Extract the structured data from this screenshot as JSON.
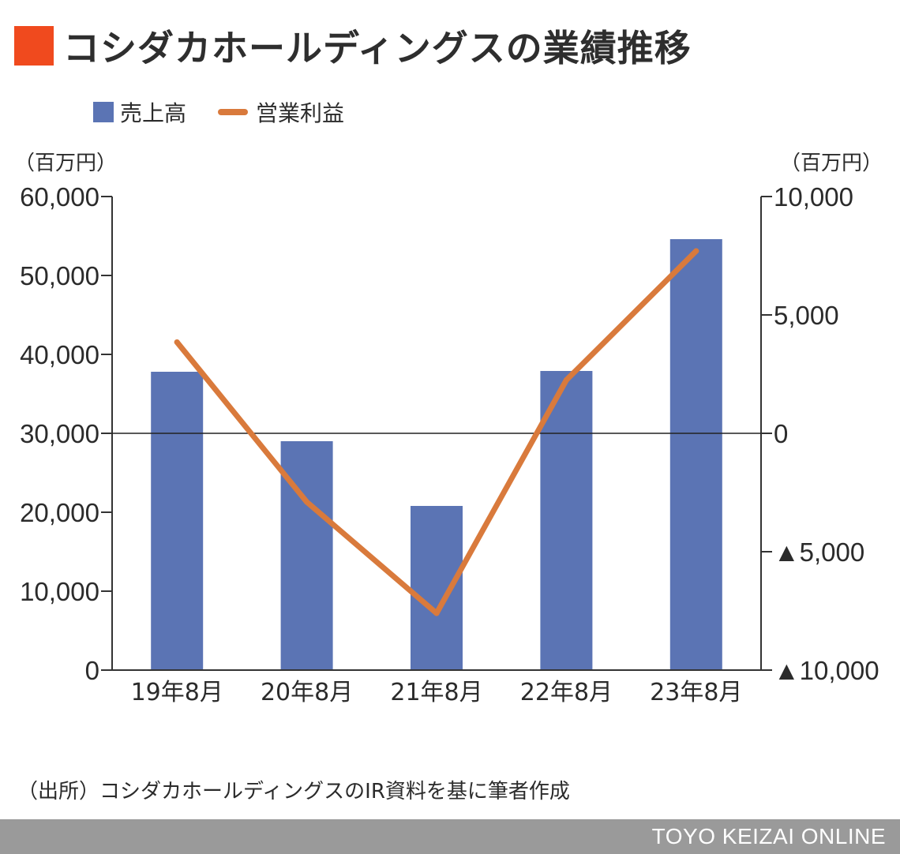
{
  "header": {
    "title": "コシダカホールディングスの業績推移",
    "accent_color": "#f04a1e"
  },
  "legend": {
    "bar_label": "売上高",
    "line_label": "営業利益"
  },
  "units": {
    "left": "（百万円）",
    "right": "（百万円）"
  },
  "source": "（出所）コシダカホールディングスのIR資料を基に筆者作成",
  "footer": {
    "brand": "TOYO KEIZAI ONLINE"
  },
  "chart_data": {
    "type": "bar",
    "categories": [
      "19年8月",
      "20年8月",
      "21年8月",
      "22年8月",
      "23年8月"
    ],
    "series": [
      {
        "name": "売上高",
        "type": "bar",
        "axis": "left",
        "color": "#5b74b4",
        "values": [
          37800,
          29000,
          20800,
          37900,
          54600
        ]
      },
      {
        "name": "営業利益",
        "type": "line",
        "axis": "right",
        "color": "#d97a3c",
        "values": [
          3850,
          -2900,
          -7600,
          2250,
          7700
        ]
      }
    ],
    "y_left": {
      "lim": [
        0,
        60000
      ],
      "ticks": [
        0,
        10000,
        20000,
        30000,
        40000,
        50000,
        60000
      ],
      "tick_labels": [
        "0",
        "10,000",
        "20,000",
        "30,000",
        "40,000",
        "50,000",
        "60,000"
      ]
    },
    "y_right": {
      "lim": [
        -10000,
        10000
      ],
      "ticks": [
        -10000,
        -5000,
        0,
        5000,
        10000
      ],
      "tick_labels": [
        "▲10,000",
        "▲5,000",
        "0",
        "5,000",
        "10,000"
      ]
    },
    "zero_line": true,
    "grid": false
  }
}
